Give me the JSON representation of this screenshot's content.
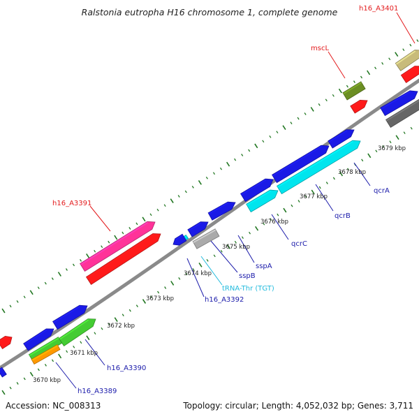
{
  "title": "Ralstonia eutropha H16 chromosome 1, complete genome",
  "footer": {
    "accession": "Accession: NC_008313",
    "summary": "Topology: circular; Length: 4,052,032 bp; Genes: 3,711"
  },
  "ticks": [
    "3670 kbp",
    "3671 kbp",
    "3672 kbp",
    "3673 kbp",
    "3674 kbp",
    "3675 kbp",
    "3676 kbp",
    "3677 kbp",
    "3678 kbp",
    "3679 kbp"
  ],
  "labels": {
    "h16_A3401": "h16_A3401",
    "mscL": "mscL",
    "h16_A3391": "h16_A3391",
    "qcrA": "qcrA",
    "qcrB": "qcrB",
    "qcrC": "qcrC",
    "sspA": "sspA",
    "sspB": "sspB",
    "trna": "tRNA-Thr (TGT)",
    "h16_A3392": "h16_A3392",
    "h16_A3390": "h16_A3390",
    "h16_A3389": "h16_A3389"
  },
  "colors": {
    "blue": "#1a1ae6",
    "red": "#ff1a1a",
    "cyan": "#00e5ee",
    "pink": "#ff3399",
    "green": "#44cc33",
    "orange": "#ff9900",
    "olive": "#6b8e23",
    "khaki": "#c8bb7a",
    "gray": "#aaaaaa",
    "darkgray": "#666666",
    "label_red": "#e31a1c",
    "label_blue": "#1a1aaa",
    "label_cyan": "#22bbdd",
    "tick_green": "#227722",
    "backbone": "#888888"
  }
}
